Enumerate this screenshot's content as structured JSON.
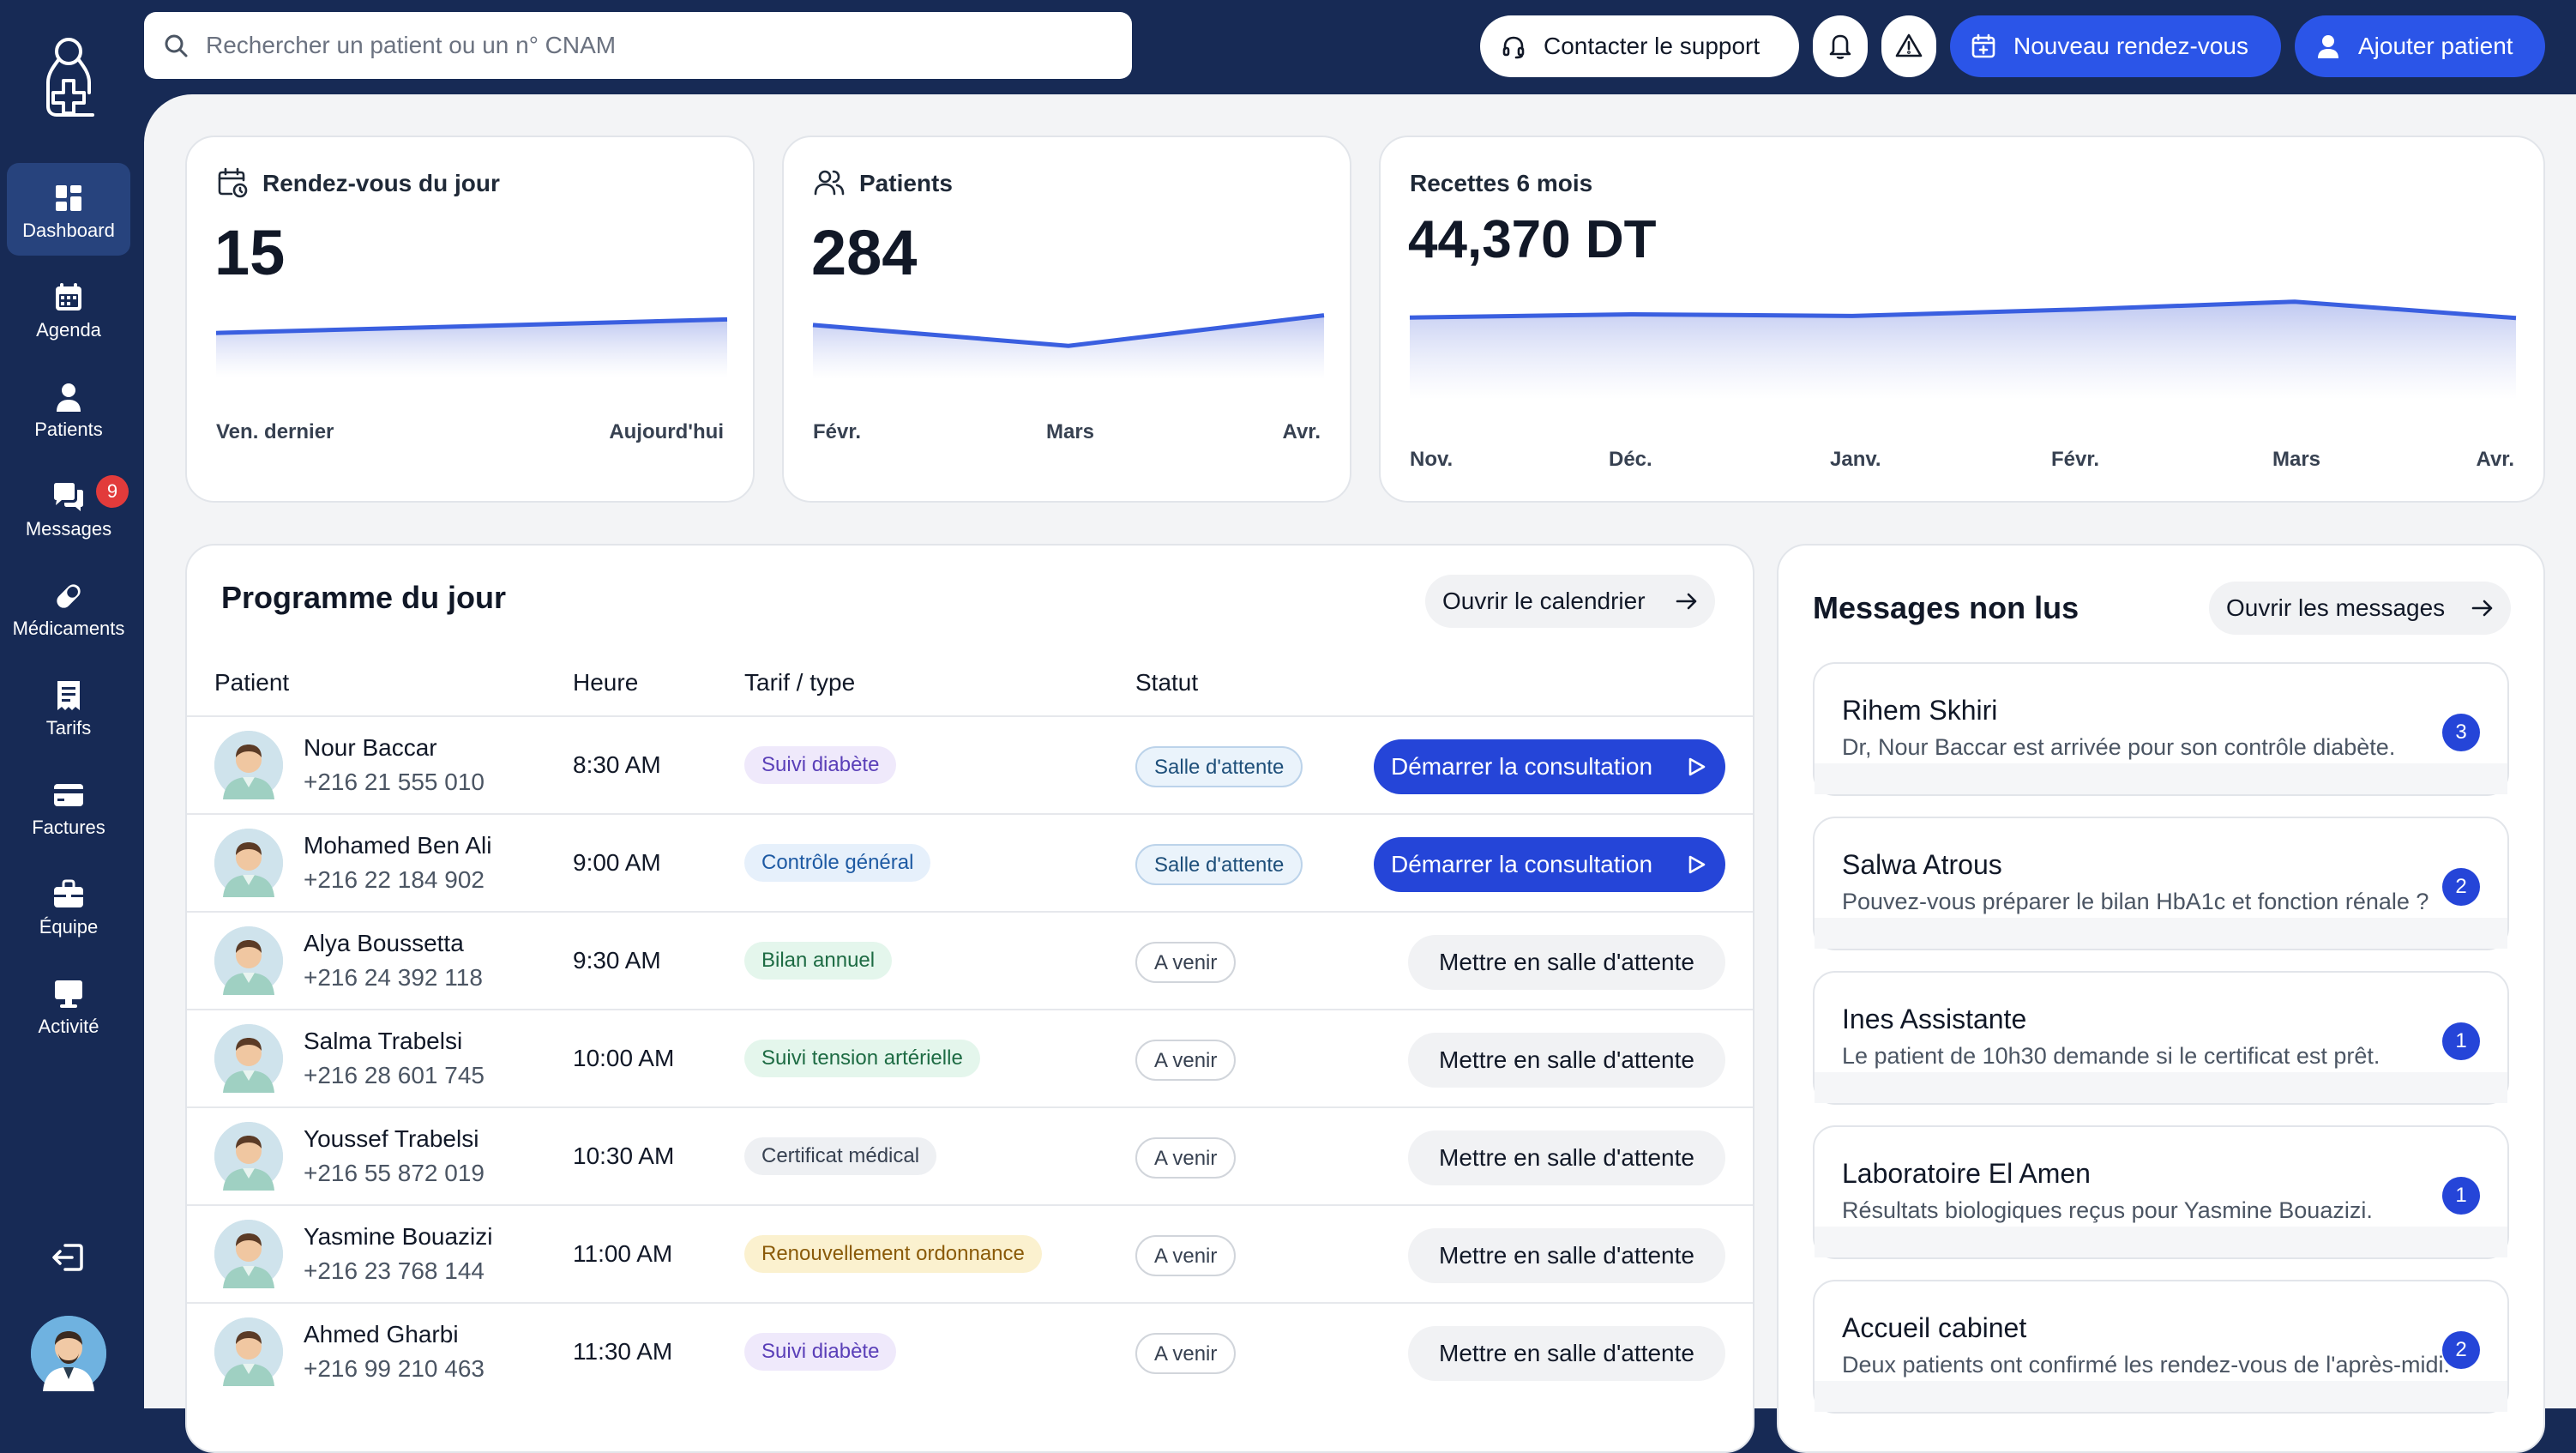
{
  "search": {
    "placeholder": "Rechercher un patient ou un n° CNAM"
  },
  "topbar": {
    "support_label": "Contacter le support",
    "new_rdv_label": "Nouveau rendez-vous",
    "add_patient_label": "Ajouter patient"
  },
  "sidebar": {
    "items": [
      {
        "label": "Dashboard",
        "icon": "dashboard-icon",
        "active": true
      },
      {
        "label": "Agenda",
        "icon": "calendar-icon"
      },
      {
        "label": "Patients",
        "icon": "user-icon"
      },
      {
        "label": "Messages",
        "icon": "chat-icon",
        "badge": "9"
      },
      {
        "label": "Médicaments",
        "icon": "pill-icon"
      },
      {
        "label": "Tarifs",
        "icon": "receipt-icon"
      },
      {
        "label": "Factures",
        "icon": "wallet-icon"
      },
      {
        "label": "Équipe",
        "icon": "briefcase-icon"
      },
      {
        "label": "Activité",
        "icon": "monitor-icon"
      }
    ]
  },
  "stats": {
    "rdv": {
      "title": "Rendez-vous du jour",
      "value": "15",
      "axis": [
        "Ven. dernier",
        "Aujourd'hui"
      ],
      "chart_data": {
        "type": "area",
        "x": [
          "Ven. dernier",
          "Aujourd'hui"
        ],
        "values": [
          10,
          15
        ]
      }
    },
    "patients": {
      "title": "Patients",
      "value": "284",
      "axis": [
        "Févr.",
        "Mars",
        "Avr."
      ],
      "chart_data": {
        "type": "area",
        "x": [
          "Févr.",
          "Mars",
          "Avr."
        ],
        "values": [
          278,
          265,
          284
        ]
      }
    },
    "recettes": {
      "title": "Recettes 6 mois",
      "value": "44,370 DT",
      "axis": [
        "Nov.",
        "Déc.",
        "Janv.",
        "Févr.",
        "Mars",
        "Avr."
      ],
      "chart_data": {
        "type": "area",
        "x": [
          "Nov.",
          "Déc.",
          "Janv.",
          "Févr.",
          "Mars",
          "Avr."
        ],
        "values": [
          7100,
          7300,
          7200,
          7600,
          8100,
          7070
        ]
      }
    }
  },
  "programme": {
    "title": "Programme du jour",
    "calendar_btn": "Ouvrir le calendrier",
    "columns": [
      "Patient",
      "Heure",
      "Tarif / type",
      "Statut"
    ],
    "start_label": "Démarrer la consultation",
    "waiting_label": "Mettre en salle d'attente",
    "rows": [
      {
        "name": "Nour Baccar",
        "phone": "+216 21 555 010",
        "time": "8:30 AM",
        "tag": "Suivi diabète",
        "tag_color": "purple",
        "status": "Salle d'attente",
        "waiting": true
      },
      {
        "name": "Mohamed Ben Ali",
        "phone": "+216 22 184 902",
        "time": "9:00 AM",
        "tag": "Contrôle général",
        "tag_color": "blue",
        "status": "Salle d'attente",
        "waiting": true
      },
      {
        "name": "Alya Boussetta",
        "phone": "+216 24 392 118",
        "time": "9:30 AM",
        "tag": "Bilan annuel",
        "tag_color": "green",
        "status": "A venir",
        "waiting": false
      },
      {
        "name": "Salma Trabelsi",
        "phone": "+216 28 601 745",
        "time": "10:00 AM",
        "tag": "Suivi tension artérielle",
        "tag_color": "green",
        "status": "A venir",
        "waiting": false
      },
      {
        "name": "Youssef Trabelsi",
        "phone": "+216 55 872 019",
        "time": "10:30 AM",
        "tag": "Certificat médical",
        "tag_color": "gray",
        "status": "A venir",
        "waiting": false
      },
      {
        "name": "Yasmine Bouazizi",
        "phone": "+216 23 768 144",
        "time": "11:00 AM",
        "tag": "Renouvellement ordonnance",
        "tag_color": "yellow",
        "status": "A venir",
        "waiting": false
      },
      {
        "name": "Ahmed Gharbi",
        "phone": "+216 99 210 463",
        "time": "11:30 AM",
        "tag": "Suivi diabète",
        "tag_color": "purple",
        "status": "A venir",
        "waiting": false
      }
    ]
  },
  "messages": {
    "title": "Messages non lus",
    "open_btn": "Ouvrir les messages",
    "items": [
      {
        "sender": "Rihem Skhiri",
        "preview": "Dr, Nour Baccar est arrivée pour son contrôle diabète.",
        "count": "3"
      },
      {
        "sender": "Salwa Atrous",
        "preview": "Pouvez-vous préparer le bilan HbA1c et fonction rénale ?",
        "count": "2"
      },
      {
        "sender": "Ines Assistante",
        "preview": "Le patient de 10h30 demande si le certificat est prêt.",
        "count": "1"
      },
      {
        "sender": "Laboratoire El Amen",
        "preview": "Résultats biologiques reçus pour Yasmine Bouazizi.",
        "count": "1"
      },
      {
        "sender": "Accueil cabinet",
        "preview": "Deux patients ont confirmé les rendez-vous de l'après-midi.",
        "count": "2"
      }
    ]
  },
  "colors": {
    "sidebar_bg": "#172a55",
    "primary": "#2b55e8",
    "badge": "#e23b3b",
    "chart_line": "#3a5fe0"
  }
}
